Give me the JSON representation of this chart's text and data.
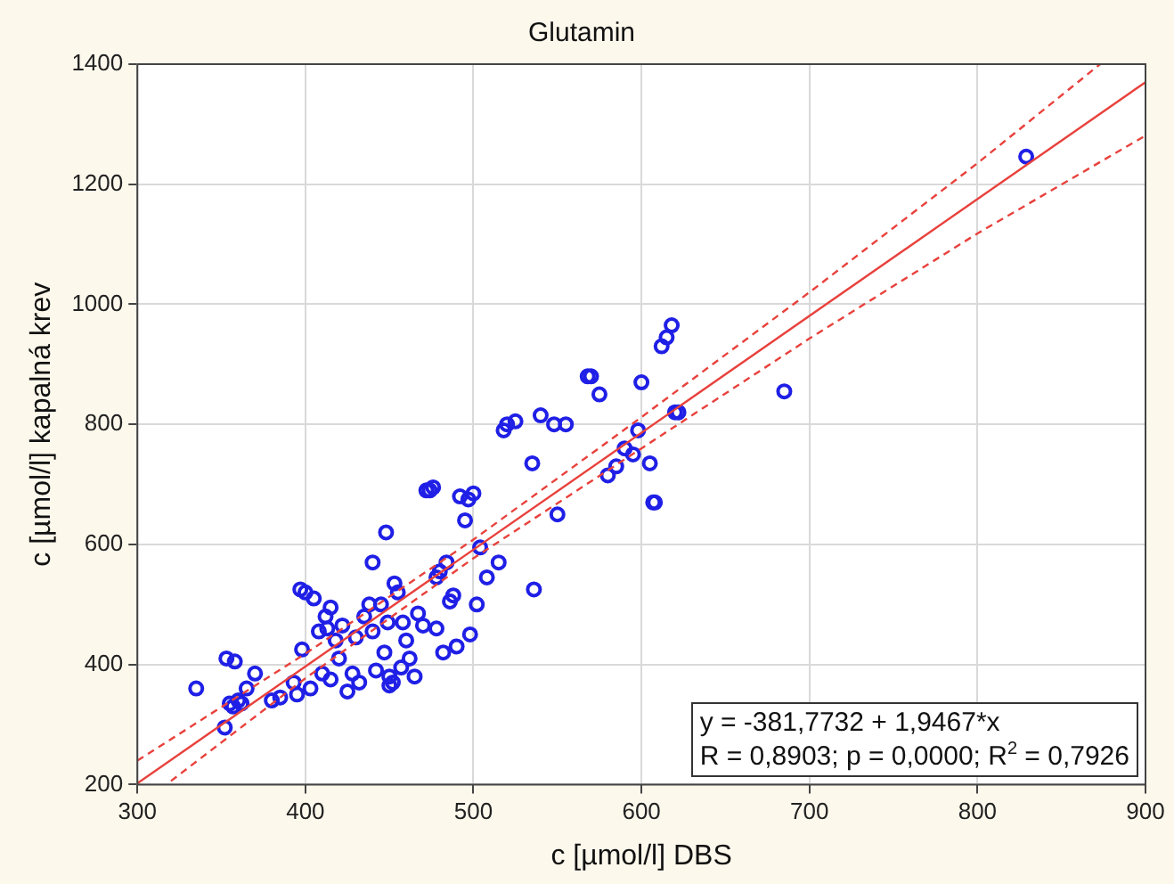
{
  "chart_data": {
    "type": "scatter",
    "title": "Glutamin",
    "xlabel": "c [µmol/l] DBS",
    "ylabel": "c [µmol/l] kapalná krev",
    "xlim": [
      300,
      900
    ],
    "xticks": [
      300,
      400,
      500,
      600,
      700,
      800,
      900
    ],
    "ylim": [
      200,
      1400
    ],
    "yticks": [
      200,
      400,
      600,
      800,
      1000,
      1200,
      1400
    ],
    "grid": true,
    "legend": false,
    "marker": "circle",
    "annotations": [
      "y = -381,7732 + 1,9467*x",
      "R = 0,8903; p = 0,0000; R$^{2}$ = 0,7926"
    ],
    "series": [
      {
        "type": "scatter",
        "color": "#1f1fe6",
        "x": [
          335,
          352,
          353,
          355,
          357,
          360,
          358,
          362,
          365,
          370,
          380,
          385,
          393,
          395,
          397,
          398,
          400,
          403,
          405,
          408,
          410,
          412,
          413,
          415,
          415,
          418,
          420,
          422,
          425,
          428,
          430,
          432,
          435,
          438,
          440,
          440,
          442,
          445,
          447,
          448,
          449,
          450,
          450,
          452,
          453,
          455,
          457,
          458,
          460,
          462,
          465,
          467,
          470,
          472,
          474,
          476,
          478,
          478,
          480,
          482,
          484,
          486,
          488,
          490,
          492,
          495,
          497,
          498,
          500,
          502,
          504,
          508,
          515,
          518,
          520,
          525,
          535,
          536,
          540,
          548,
          550,
          555,
          568,
          570,
          575,
          580,
          585,
          590,
          595,
          598,
          600,
          605,
          607,
          608,
          612,
          615,
          618,
          620,
          622,
          685,
          829
        ],
        "values": [
          360,
          295,
          410,
          335,
          330,
          340,
          405,
          335,
          360,
          385,
          340,
          345,
          370,
          350,
          525,
          425,
          520,
          360,
          510,
          455,
          385,
          480,
          460,
          375,
          495,
          440,
          410,
          465,
          355,
          385,
          445,
          370,
          480,
          500,
          570,
          455,
          390,
          500,
          420,
          620,
          470,
          380,
          365,
          370,
          535,
          520,
          395,
          470,
          440,
          410,
          380,
          485,
          465,
          690,
          690,
          695,
          460,
          545,
          555,
          420,
          570,
          505,
          515,
          430,
          680,
          640,
          675,
          450,
          685,
          500,
          595,
          545,
          570,
          790,
          800,
          805,
          735,
          525,
          815,
          800,
          650,
          800,
          880,
          880,
          850,
          715,
          730,
          760,
          750,
          790,
          870,
          735,
          670,
          670,
          930,
          945,
          965,
          820,
          820,
          855,
          1246
        ]
      },
      {
        "type": "line",
        "color": "#e8413c",
        "line_style": "solid",
        "marker": "none",
        "x": [
          300,
          900
        ],
        "values": [
          202,
          1370
        ]
      },
      {
        "type": "line",
        "color": "#e8413c",
        "line_style": "dashed",
        "marker": "none",
        "x": [
          300,
          400,
          500,
          600,
          700,
          800,
          873
        ],
        "values": [
          240,
          418,
          608,
          812,
          1020,
          1235,
          1400
        ]
      },
      {
        "type": "line",
        "color": "#e8413c",
        "line_style": "dashed",
        "marker": "none",
        "x": [
          320,
          400,
          500,
          600,
          700,
          800,
          900
        ],
        "values": [
          206,
          377,
          577,
          760,
          943,
          1118,
          1281
        ]
      }
    ]
  }
}
